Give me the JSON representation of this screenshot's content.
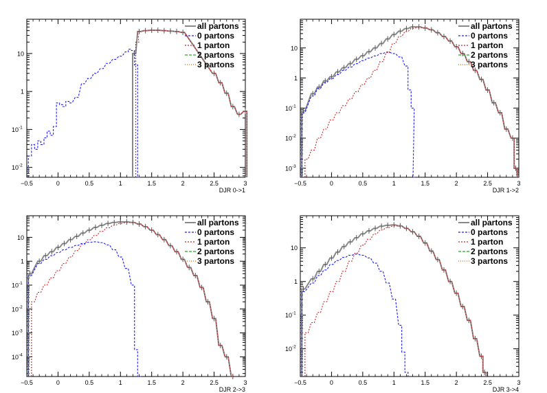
{
  "chart_data": [
    {
      "type": "line",
      "xlabel": "DJR 0->1",
      "xlim": [
        -0.5,
        3
      ],
      "ylim": [
        0.0055,
        80
      ],
      "log_y": true,
      "xticks": [
        -0.5,
        0,
        0.5,
        1,
        1.5,
        2,
        2.5,
        3
      ],
      "xtick_labels": [
        "−0.5",
        "0",
        "0.5",
        "1",
        "1.5",
        "2",
        "2.5",
        "3"
      ],
      "yticks": [
        0.01,
        0.1,
        1,
        10
      ],
      "ytick_labels": [
        [
          "10",
          "-2"
        ],
        [
          "10",
          "-1"
        ],
        [
          "1",
          ""
        ],
        [
          "10",
          ""
        ]
      ],
      "legend": [
        "all partons",
        "0 partons",
        "1 parton",
        "2 partons",
        "3 partons"
      ],
      "series": [
        {
          "name": "all partons",
          "color": "#888888",
          "x": [
            1.22,
            1.3,
            1.4,
            1.5,
            1.6,
            1.7,
            1.8,
            1.9,
            2.0,
            2.5,
            2.6,
            2.7,
            2.8,
            2.9,
            3.0
          ],
          "values": [
            10,
            38,
            40,
            41,
            41,
            40,
            39,
            38,
            36,
            3.0,
            1.7,
            0.9,
            0.4,
            0.25,
            0.3
          ]
        },
        {
          "name": "0 partons",
          "color": "#1a1aff",
          "x": [
            -0.45,
            -0.4,
            -0.35,
            -0.3,
            -0.25,
            -0.2,
            -0.15,
            -0.1,
            -0.05,
            0.0,
            0.05,
            0.1,
            0.15,
            0.2,
            0.3,
            0.4,
            0.5,
            0.6,
            0.7,
            0.8,
            0.9,
            1.0,
            1.1,
            1.15,
            1.2,
            1.25,
            1.3
          ],
          "values": [
            0.02,
            0.04,
            0.03,
            0.05,
            0.04,
            0.06,
            0.09,
            0.07,
            0.12,
            0.5,
            0.45,
            0.4,
            0.55,
            0.5,
            0.7,
            1.6,
            2.2,
            3.0,
            4.0,
            5.5,
            7.0,
            8.5,
            11,
            13,
            12,
            5,
            0.005
          ]
        },
        {
          "name": "1 parton",
          "color": "#cc2222",
          "x": [
            1.27,
            1.3,
            1.4,
            1.5,
            1.6,
            1.7,
            1.8,
            1.9,
            2.0,
            2.5,
            2.6,
            2.7,
            2.8,
            2.9,
            3.0
          ],
          "values": [
            20,
            38,
            40,
            41,
            41,
            40,
            39,
            38,
            36,
            3.0,
            1.7,
            0.9,
            0.4,
            0.25,
            0.3
          ]
        },
        {
          "name": "2 partons",
          "color": "#22aa22",
          "x": [],
          "values": []
        },
        {
          "name": "3 partons",
          "color": "#dd6600",
          "x": [],
          "values": []
        }
      ]
    },
    {
      "type": "line",
      "xlabel": "DJR 1->2",
      "xlim": [
        -0.5,
        3
      ],
      "ylim": [
        0.0005,
        90
      ],
      "log_y": true,
      "xticks": [
        -0.5,
        0,
        0.5,
        1,
        1.5,
        2,
        2.5,
        3
      ],
      "xtick_labels": [
        "−0.5",
        "0",
        "0.5",
        "1",
        "1.5",
        "2",
        "2.5",
        "3"
      ],
      "yticks": [
        0.001,
        0.01,
        0.1,
        1,
        10
      ],
      "ytick_labels": [
        [
          "10",
          "-3"
        ],
        [
          "10",
          "-2"
        ],
        [
          "10",
          "-1"
        ],
        [
          "1",
          ""
        ],
        [
          "10",
          ""
        ]
      ],
      "legend": [
        "all partons",
        "0 partons",
        "1 parton",
        "2 partons",
        "3 partons"
      ],
      "series": [
        {
          "name": "all partons",
          "color": "#888888",
          "x": [
            -0.45,
            -0.3,
            -0.2,
            -0.1,
            0.0,
            0.1,
            0.2,
            0.3,
            0.4,
            0.5,
            0.6,
            0.7,
            0.8,
            0.9,
            1.0,
            1.1,
            1.2,
            1.3,
            1.4,
            1.5,
            1.6,
            1.7,
            1.8,
            1.9,
            2.0,
            2.1,
            2.2,
            2.3,
            2.4,
            2.5,
            2.6,
            2.7,
            2.8,
            2.9,
            2.95
          ],
          "values": [
            0.08,
            0.3,
            0.5,
            0.8,
            1.1,
            1.6,
            2.2,
            3.0,
            4.2,
            5.5,
            7.5,
            10,
            14,
            20,
            28,
            36,
            44,
            50,
            50,
            46,
            40,
            32,
            24,
            17,
            11,
            6.5,
            3.5,
            1.8,
            0.9,
            0.4,
            0.15,
            0.07,
            0.02,
            0.01,
            0.001
          ]
        },
        {
          "name": "0 partons",
          "color": "#1a1aff",
          "x": [
            -0.45,
            -0.3,
            -0.2,
            -0.1,
            0.0,
            0.1,
            0.2,
            0.3,
            0.4,
            0.5,
            0.6,
            0.7,
            0.8,
            0.9,
            1.0,
            1.1,
            1.2,
            1.25,
            1.3,
            1.33
          ],
          "values": [
            0.07,
            0.25,
            0.45,
            0.7,
            0.95,
            1.3,
            1.8,
            2.3,
            3.0,
            3.8,
            4.6,
            5.4,
            6.5,
            7.3,
            6.5,
            5.0,
            2.5,
            0.4,
            0.1,
            0.0005
          ]
        },
        {
          "name": "1 parton",
          "color": "#cc2222",
          "x": [
            -0.4,
            -0.3,
            -0.2,
            -0.1,
            0.0,
            0.1,
            0.2,
            0.3,
            0.4,
            0.5,
            0.6,
            0.7,
            0.8,
            0.9,
            1.0,
            1.1,
            1.2,
            1.3,
            1.4,
            1.5,
            1.6,
            1.7,
            1.8,
            1.9,
            2.0,
            2.1,
            2.2,
            2.3,
            2.4,
            2.5,
            2.6,
            2.7,
            2.8,
            2.9,
            2.95
          ],
          "values": [
            0.002,
            0.004,
            0.01,
            0.02,
            0.04,
            0.07,
            0.12,
            0.2,
            0.35,
            0.6,
            1.0,
            1.8,
            3.5,
            7,
            14,
            24,
            35,
            45,
            48,
            46,
            40,
            32,
            24,
            17,
            11,
            6.5,
            3.5,
            1.8,
            0.9,
            0.4,
            0.15,
            0.07,
            0.02,
            0.01,
            0.001
          ]
        },
        {
          "name": "2 partons",
          "color": "#22aa22",
          "x": [],
          "values": []
        },
        {
          "name": "3 partons",
          "color": "#dd6600",
          "x": [],
          "values": []
        }
      ]
    },
    {
      "type": "line",
      "xlabel": "DJR 2->3",
      "xlim": [
        -0.5,
        3
      ],
      "ylim": [
        1.5e-05,
        80
      ],
      "log_y": true,
      "xticks": [
        -0.5,
        0,
        0.5,
        1,
        1.5,
        2,
        2.5,
        3
      ],
      "xtick_labels": [
        "−0.5",
        "0",
        "0.5",
        "1",
        "1.5",
        "2",
        "2.5",
        "3"
      ],
      "yticks": [
        0.0001,
        0.001,
        0.01,
        0.1,
        1,
        10
      ],
      "ytick_labels": [
        [
          "10",
          "-4"
        ],
        [
          "10",
          "-3"
        ],
        [
          "10",
          "-2"
        ],
        [
          "10",
          "-1"
        ],
        [
          "1",
          ""
        ],
        [
          "10",
          ""
        ]
      ],
      "legend": [
        "all partons",
        "0 partons",
        "1 parton",
        "2 partons",
        "3 partons"
      ],
      "series": [
        {
          "name": "all partons",
          "color": "#888888",
          "x": [
            -0.45,
            -0.3,
            -0.2,
            -0.1,
            0.0,
            0.1,
            0.2,
            0.3,
            0.4,
            0.5,
            0.6,
            0.7,
            0.8,
            0.9,
            1.0,
            1.1,
            1.2,
            1.3,
            1.4,
            1.5,
            1.6,
            1.7,
            1.8,
            1.9,
            2.0,
            2.1,
            2.2,
            2.3,
            2.4,
            2.5,
            2.6,
            2.7,
            2.8
          ],
          "values": [
            0.3,
            1.0,
            1.7,
            2.5,
            3.8,
            5.5,
            8,
            11,
            15,
            20,
            26,
            32,
            38,
            42,
            44,
            44,
            42,
            36,
            28,
            20,
            13,
            8,
            4.5,
            2.5,
            1.2,
            0.55,
            0.25,
            0.08,
            0.02,
            0.004,
            0.0003,
            0.0001,
            1e-05
          ]
        },
        {
          "name": "0 partons",
          "color": "#1a1aff",
          "x": [
            -0.45,
            -0.3,
            -0.2,
            -0.1,
            0.0,
            0.1,
            0.2,
            0.3,
            0.4,
            0.5,
            0.6,
            0.7,
            0.8,
            0.9,
            1.0,
            1.1,
            1.2,
            1.25,
            1.3
          ],
          "values": [
            0.25,
            0.8,
            1.2,
            1.7,
            2.3,
            3.0,
            3.8,
            4.6,
            5.5,
            6.2,
            6.5,
            6.0,
            4.8,
            3.0,
            1.5,
            0.5,
            0.1,
            0.0002,
            1e-05
          ]
        },
        {
          "name": "1 parton",
          "color": "#cc2222",
          "x": [
            -0.4,
            -0.3,
            -0.2,
            -0.1,
            0.0,
            0.1,
            0.2,
            0.3,
            0.4,
            0.5,
            0.6,
            0.7,
            0.8,
            0.9,
            1.0,
            1.1,
            1.2,
            1.3,
            1.4,
            1.5,
            1.6,
            1.7,
            1.8,
            1.9,
            2.0,
            2.1,
            2.2,
            2.3,
            2.4,
            2.5,
            2.6,
            2.7,
            2.8
          ],
          "values": [
            0.02,
            0.05,
            0.1,
            0.2,
            0.4,
            0.8,
            1.5,
            2.8,
            5,
            8,
            12,
            18,
            25,
            32,
            38,
            42,
            42,
            36,
            28,
            20,
            13,
            8,
            4.5,
            2.5,
            1.2,
            0.55,
            0.25,
            0.08,
            0.02,
            0.004,
            0.0003,
            0.0001,
            1e-05
          ]
        },
        {
          "name": "2 partons",
          "color": "#22aa22",
          "x": [],
          "values": []
        },
        {
          "name": "3 partons",
          "color": "#dd6600",
          "x": [],
          "values": []
        }
      ]
    },
    {
      "type": "line",
      "xlabel": "DJR 3->4",
      "xlim": [
        -0.5,
        3
      ],
      "ylim": [
        0.0015,
        90
      ],
      "log_y": true,
      "xticks": [
        -0.5,
        0,
        0.5,
        1,
        1.5,
        2,
        2.5,
        3
      ],
      "xtick_labels": [
        "−0.5",
        "0",
        "0.5",
        "1",
        "1.5",
        "2",
        "2.5",
        "3"
      ],
      "yticks": [
        0.01,
        0.1,
        1,
        10
      ],
      "ytick_labels": [
        [
          "10",
          "-2"
        ],
        [
          "10",
          "-1"
        ],
        [
          "1",
          ""
        ],
        [
          "10",
          ""
        ]
      ],
      "legend": [
        "all partons",
        "0 partons",
        "1 parton",
        "2 partons",
        "3 partons"
      ],
      "series": [
        {
          "name": "all partons",
          "color": "#888888",
          "x": [
            -0.45,
            -0.3,
            -0.2,
            -0.1,
            0.0,
            0.1,
            0.2,
            0.3,
            0.4,
            0.5,
            0.6,
            0.7,
            0.8,
            0.9,
            1.0,
            1.1,
            1.2,
            1.3,
            1.4,
            1.5,
            1.6,
            1.7,
            1.8,
            1.9,
            2.0,
            2.1,
            2.2,
            2.3,
            2.4,
            2.45
          ],
          "values": [
            0.6,
            1.2,
            2.0,
            3.2,
            5,
            7.5,
            11,
            15,
            20,
            26,
            32,
            38,
            44,
            47,
            48,
            45,
            38,
            30,
            22,
            14,
            8,
            4.5,
            2.2,
            1.0,
            0.45,
            0.18,
            0.07,
            0.02,
            0.006,
            0.002
          ]
        },
        {
          "name": "0 partons",
          "color": "#1a1aff",
          "x": [
            -0.45,
            -0.3,
            -0.2,
            -0.1,
            0.0,
            0.1,
            0.2,
            0.3,
            0.4,
            0.5,
            0.6,
            0.7,
            0.8,
            0.9,
            1.0,
            1.1,
            1.15,
            1.2
          ],
          "values": [
            0.5,
            0.9,
            1.5,
            2.2,
            3.2,
            4.2,
            5.2,
            6.0,
            6.5,
            6.0,
            5.0,
            3.5,
            2.0,
            0.9,
            0.3,
            0.05,
            0.008,
            0.002
          ]
        },
        {
          "name": "1 parton",
          "color": "#cc2222",
          "x": [
            -0.4,
            -0.3,
            -0.2,
            -0.1,
            0.0,
            0.1,
            0.2,
            0.3,
            0.4,
            0.5,
            0.6,
            0.7,
            0.8,
            0.9,
            1.0,
            1.1,
            1.2,
            1.3,
            1.4,
            1.5,
            1.6,
            1.7,
            1.8,
            1.9,
            2.0,
            2.1,
            2.2,
            2.3,
            2.4,
            2.45
          ],
          "values": [
            0.03,
            0.06,
            0.12,
            0.25,
            0.5,
            1.0,
            2.0,
            4.0,
            7,
            12,
            18,
            26,
            34,
            40,
            45,
            44,
            38,
            30,
            22,
            14,
            8,
            4.5,
            2.2,
            1.0,
            0.45,
            0.18,
            0.07,
            0.02,
            0.006,
            0.002
          ]
        },
        {
          "name": "2 partons",
          "color": "#22aa22",
          "x": [],
          "values": []
        },
        {
          "name": "3 partons",
          "color": "#dd6600",
          "x": [],
          "values": []
        }
      ]
    }
  ]
}
